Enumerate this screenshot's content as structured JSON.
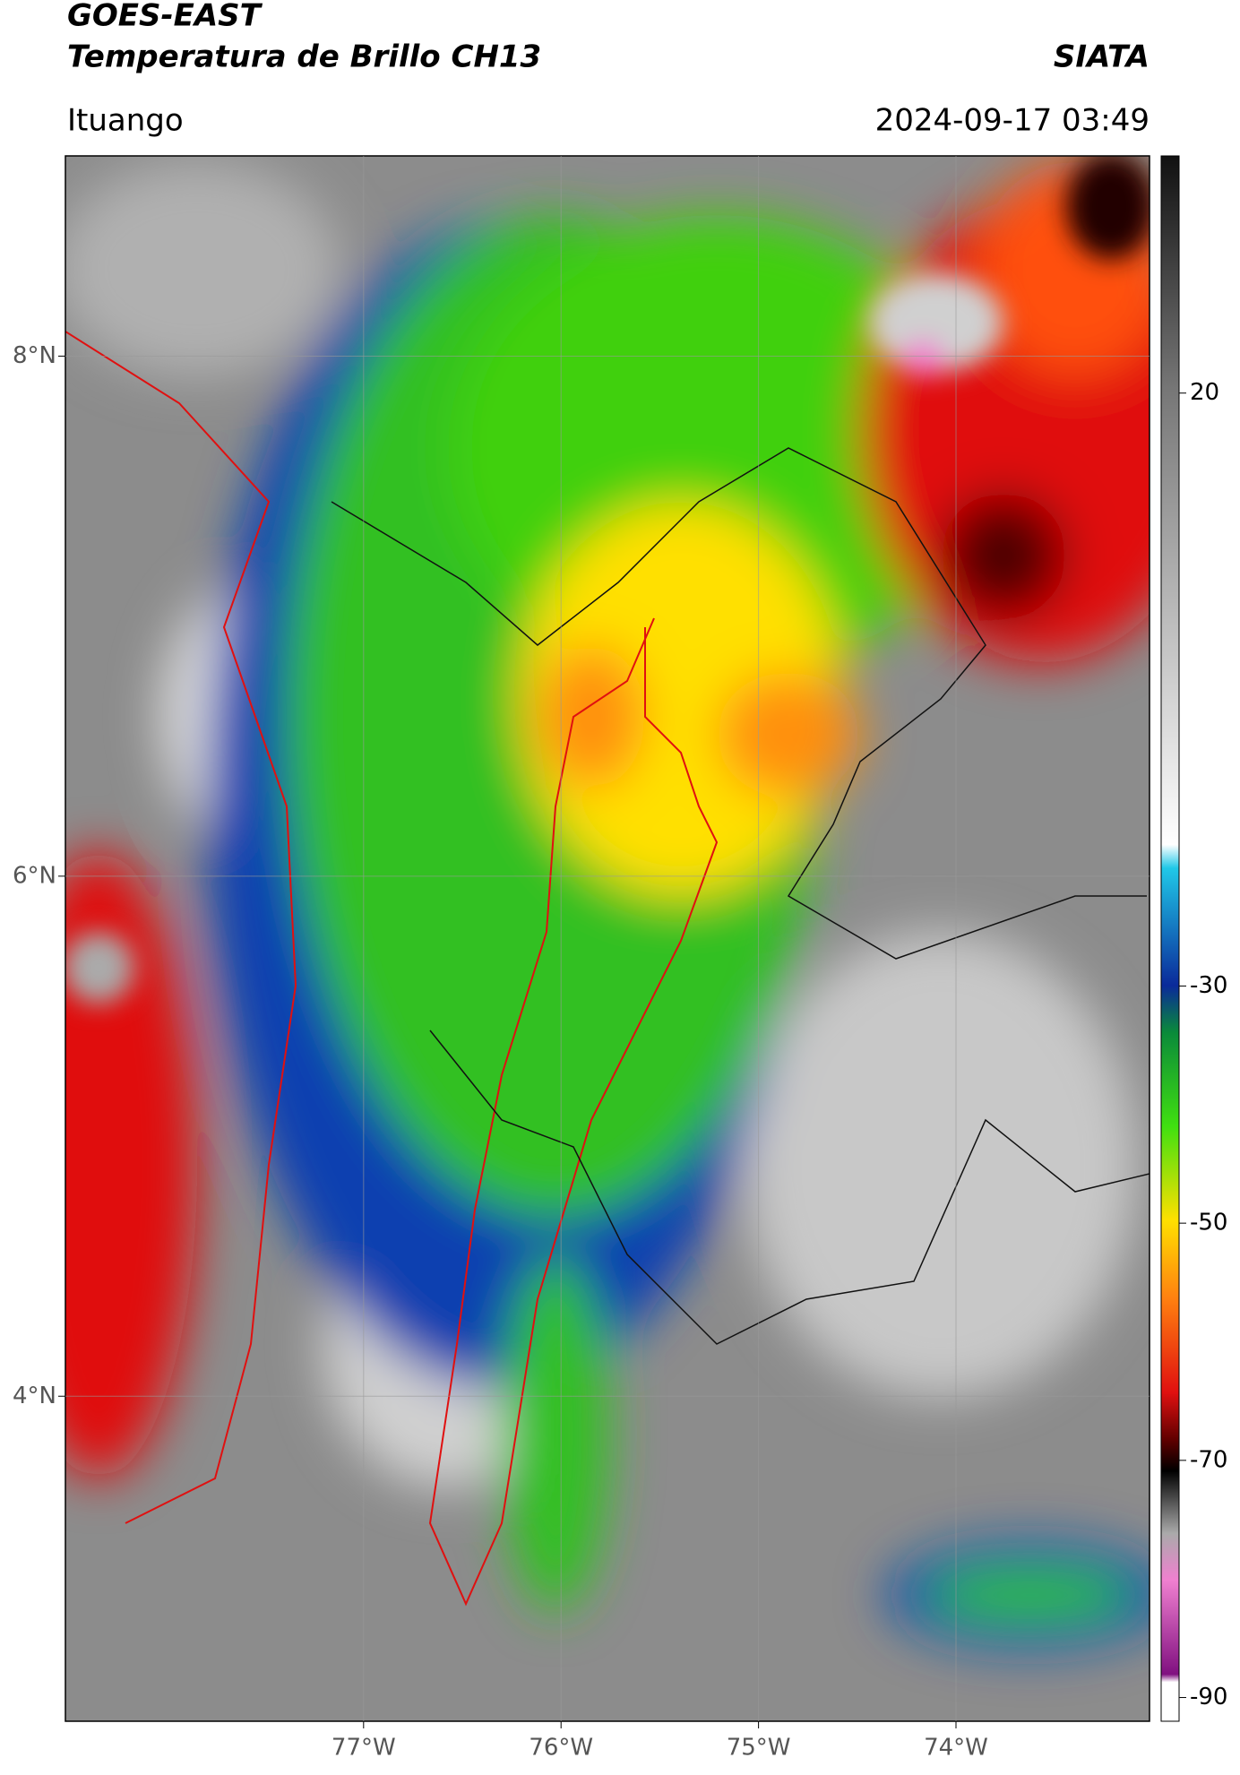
{
  "header": {
    "title": "GOES-EAST",
    "subtitle": "Temperatura de Brillo CH13",
    "org": "SIATA",
    "region": "Ituango",
    "datetime": "2024-09-17 03:49"
  },
  "map": {
    "xlim": [
      -78.51,
      -73.02
    ],
    "ylim": [
      2.75,
      8.77
    ],
    "xticks": [
      {
        "value": -77,
        "label": "77°W"
      },
      {
        "value": -76,
        "label": "76°W"
      },
      {
        "value": -75,
        "label": "75°W"
      },
      {
        "value": -74,
        "label": "74°W"
      }
    ],
    "yticks": [
      {
        "value": 8,
        "label": "8°N"
      },
      {
        "value": 6,
        "label": "6°N"
      },
      {
        "value": 4,
        "label": "4°N"
      }
    ],
    "grid": true
  },
  "colorbar": {
    "lim": [
      -92,
      40
    ],
    "ticks": [
      20,
      -30,
      -50,
      -70,
      -90
    ]
  }
}
